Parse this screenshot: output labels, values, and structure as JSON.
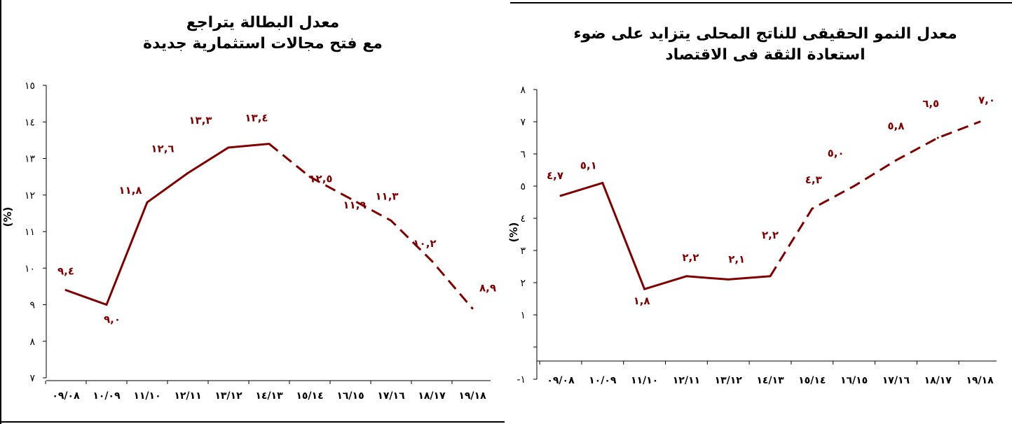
{
  "chart_data": [
    {
      "type": "line",
      "title_lines": [
        "معدل البطالة يتراجع",
        "مع فتح مجالات استثمارية جديدة"
      ],
      "ylabel": "(%)",
      "ylim": [
        7,
        15
      ],
      "yticks": [
        "٧",
        "٨",
        "٩",
        "١٠",
        "١١",
        "١٢",
        "١٣",
        "١٤",
        "١٥"
      ],
      "categories": [
        "٠٩/٠٨",
        "١٠/٠٩",
        "١١/١٠",
        "١٢/١١",
        "١٣/١٢",
        "١٤/١٣",
        "١٥/١٤",
        "١٦/١٥",
        "١٧/١٦",
        "١٨/١٧",
        "١٩/١٨"
      ],
      "series": [
        {
          "style": "solid-actual-dashed-projection",
          "values": [
            9.4,
            9.0,
            11.8,
            12.6,
            13.3,
            13.4,
            12.5,
            11.9,
            11.3,
            10.2,
            8.9
          ],
          "labels": [
            "٩,٤",
            "٩,٠",
            "١١,٨",
            "١٢,٦",
            "١٣,٣",
            "١٣,٤",
            "١٢,٥",
            "١١,٩",
            "١١,٣",
            "١٠,٢",
            "٨,٩"
          ],
          "dashed_from_index": 5
        }
      ],
      "line_color": "#800000",
      "grid": false
    },
    {
      "type": "line",
      "title_lines": [
        "معدل النمو الحقيقى للناتج المحلى يتزايد على ضوء",
        "استعادة الثقة فى الاقتصاد"
      ],
      "ylabel": "(%)",
      "ylim": [
        -1,
        8
      ],
      "yticks": [
        "-١",
        "",
        "١",
        "٢",
        "٣",
        "٤",
        "٥",
        "٦",
        "٧",
        "٨"
      ],
      "categories": [
        "٠٩/٠٨",
        "١٠/٠٩",
        "١١/١٠",
        "١٢/١١",
        "١٣/١٢",
        "١٤/١٣",
        "١٥/١٤",
        "١٦/١٥",
        "١٧/١٦",
        "١٨/١٧",
        "١٩/١٨"
      ],
      "series": [
        {
          "style": "solid-actual-dashed-projection",
          "values": [
            4.7,
            5.1,
            1.8,
            2.2,
            2.1,
            2.2,
            4.3,
            5.0,
            5.8,
            6.5,
            7.0
          ],
          "labels": [
            "٤,٧",
            "٥,١",
            "١,٨",
            "٢,٢",
            "٢,١",
            "٢,٢",
            "٤,٣",
            "٥,٠",
            "٥,٨",
            "٦,٥",
            "٧,٠"
          ],
          "dashed_from_index": 5
        }
      ],
      "line_color": "#800000",
      "grid": false
    }
  ]
}
